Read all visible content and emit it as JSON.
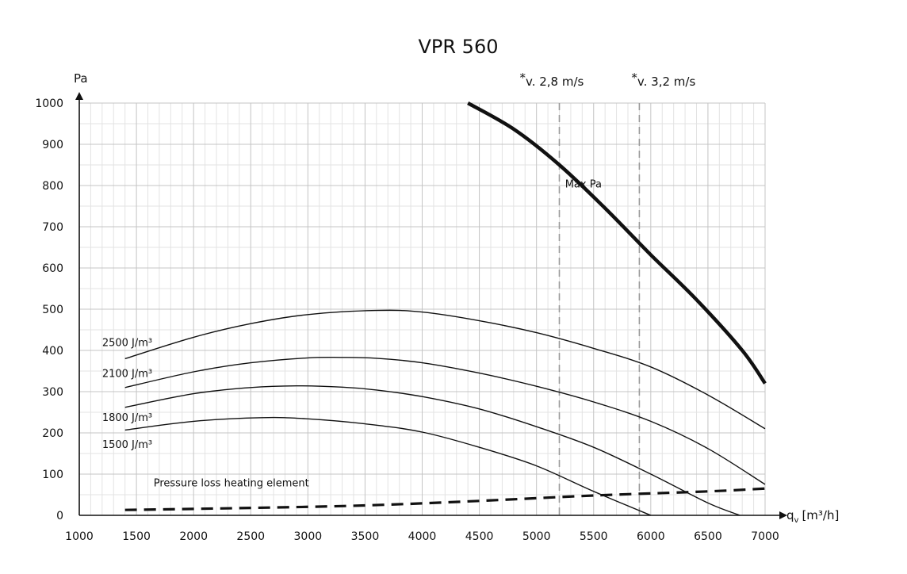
{
  "chart_data": {
    "type": "line",
    "title": "VPR 560",
    "ylabel": "Pa",
    "xlabel": "q",
    "xlabel_sub": "v",
    "xlabel_unit": "[m³/h]",
    "xlim": [
      1000,
      7000
    ],
    "ylim": [
      0,
      1000
    ],
    "x_ticks": [
      1000,
      1500,
      2000,
      2500,
      3000,
      3500,
      4000,
      4500,
      5000,
      5500,
      6000,
      6500,
      7000
    ],
    "y_ticks": [
      0,
      100,
      200,
      300,
      400,
      500,
      600,
      700,
      800,
      900,
      1000
    ],
    "grid": true,
    "velocity_lines": [
      {
        "label": "v. 2,8 m/s",
        "star": "*",
        "x": 5200
      },
      {
        "label": "v. 3,2 m/s",
        "star": "*",
        "x": 5900
      }
    ],
    "series": [
      {
        "name": "2500 J/m³",
        "style": "thin",
        "points": [
          [
            1400,
            380
          ],
          [
            2000,
            432
          ],
          [
            2500,
            465
          ],
          [
            3000,
            487
          ],
          [
            3600,
            497
          ],
          [
            4000,
            493
          ],
          [
            4500,
            472
          ],
          [
            5000,
            443
          ],
          [
            5500,
            405
          ],
          [
            6000,
            360
          ],
          [
            6500,
            292
          ],
          [
            7000,
            210
          ]
        ]
      },
      {
        "name": "2100 J/m³",
        "style": "thin",
        "points": [
          [
            1400,
            310
          ],
          [
            2000,
            348
          ],
          [
            2500,
            370
          ],
          [
            3000,
            382
          ],
          [
            3300,
            383
          ],
          [
            3600,
            381
          ],
          [
            4000,
            370
          ],
          [
            4500,
            345
          ],
          [
            5000,
            313
          ],
          [
            5500,
            275
          ],
          [
            6000,
            228
          ],
          [
            6500,
            162
          ],
          [
            7000,
            75
          ]
        ]
      },
      {
        "name": "1800 J/m³",
        "style": "thin",
        "points": [
          [
            1400,
            262
          ],
          [
            2000,
            295
          ],
          [
            2500,
            310
          ],
          [
            2900,
            314
          ],
          [
            3300,
            311
          ],
          [
            3600,
            304
          ],
          [
            4000,
            288
          ],
          [
            4500,
            258
          ],
          [
            5000,
            215
          ],
          [
            5500,
            165
          ],
          [
            6000,
            100
          ],
          [
            6500,
            30
          ],
          [
            6780,
            0
          ]
        ]
      },
      {
        "name": "1500 J/m³",
        "style": "thin",
        "points": [
          [
            1400,
            207
          ],
          [
            2000,
            228
          ],
          [
            2600,
            237
          ],
          [
            3000,
            234
          ],
          [
            3500,
            222
          ],
          [
            4000,
            202
          ],
          [
            4500,
            165
          ],
          [
            5000,
            120
          ],
          [
            5500,
            58
          ],
          [
            6000,
            0
          ]
        ]
      },
      {
        "name": "Max Pa",
        "style": "thick",
        "points": [
          [
            4400,
            1000
          ],
          [
            4800,
            937
          ],
          [
            5200,
            850
          ],
          [
            5600,
            745
          ],
          [
            6000,
            632
          ],
          [
            6400,
            523
          ],
          [
            6800,
            400
          ],
          [
            7000,
            320
          ]
        ]
      },
      {
        "name": "Pressure loss heating element",
        "style": "dashed",
        "points": [
          [
            1400,
            13
          ],
          [
            2500,
            18
          ],
          [
            3500,
            24
          ],
          [
            4500,
            35
          ],
          [
            5500,
            48
          ],
          [
            6500,
            58
          ],
          [
            7000,
            65
          ]
        ]
      }
    ],
    "label_positions": {
      "2500 J/m³": [
        1200,
        420
      ],
      "2100 J/m³": [
        1200,
        345
      ],
      "1800 J/m³": [
        1200,
        238
      ],
      "1500 J/m³": [
        1200,
        173
      ],
      "Max Pa": [
        5250,
        805
      ],
      "Pressure loss heating element": [
        1650,
        80
      ]
    }
  }
}
